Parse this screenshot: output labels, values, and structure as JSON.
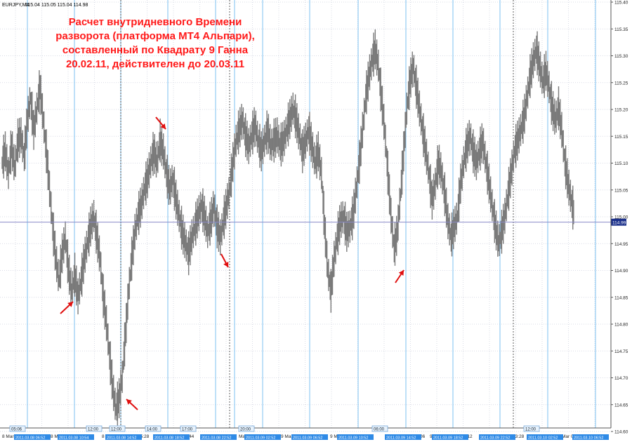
{
  "chart_data": {
    "type": "line",
    "symbol_header": {
      "symbol": "EURJPY,M4",
      "values": [
        "115.04",
        "115.05",
        "115.04",
        "114.98"
      ]
    },
    "annotation": {
      "lines": [
        "Расчет внутридневного Времени",
        "разворота (платформа МТ4 Альпари),",
        "составленный по Квадрату 9 Ганна",
        "20.02.11, действителен до 20.03.11"
      ]
    },
    "y_axis": {
      "labels": [
        "115.40",
        "115.35",
        "115.30",
        "115.25",
        "115.20",
        "115.15",
        "115.10",
        "115.05",
        "115.00",
        "114.95",
        "114.90",
        "114.85",
        "114.80",
        "114.75",
        "114.70",
        "114.65",
        "114.60"
      ],
      "ylim": [
        114.6,
        115.4
      ]
    },
    "current_price": "114.99",
    "price_line_value": 114.99,
    "grid": true,
    "series": [
      {
        "values": [
          115.1,
          115.12,
          115.08,
          115.13,
          115.09,
          115.14,
          115.15,
          115.11,
          115.18,
          115.22,
          115.16,
          115.2,
          115.24,
          115.18,
          115.12,
          115.05,
          114.98,
          114.92,
          114.88,
          114.93,
          114.96,
          114.9,
          114.86,
          114.89,
          114.85,
          114.88,
          114.92,
          114.95,
          114.98,
          115.0,
          114.96,
          114.92,
          114.85,
          114.8,
          114.74,
          114.68,
          114.64,
          114.66,
          114.7,
          114.78,
          114.86,
          114.92,
          114.97,
          115.0,
          115.02,
          115.05,
          115.07,
          115.1,
          115.12,
          115.1,
          115.14,
          115.12,
          115.08,
          115.05,
          115.07,
          115.03,
          115.0,
          114.97,
          114.95,
          114.93,
          114.96,
          114.98,
          115.0,
          115.02,
          115.0,
          114.97,
          114.99,
          115.02,
          114.98,
          114.96,
          114.99,
          115.02,
          115.05,
          115.1,
          115.14,
          115.16,
          115.18,
          115.15,
          115.13,
          115.15,
          115.17,
          115.14,
          115.12,
          115.14,
          115.16,
          115.13,
          115.14,
          115.15,
          115.13,
          115.14,
          115.16,
          115.18,
          115.2,
          115.18,
          115.15,
          115.12,
          115.14,
          115.16,
          115.13,
          115.1,
          115.12,
          115.08,
          114.98,
          114.9,
          114.86,
          114.92,
          114.96,
          114.99,
          115.0,
          114.97,
          114.98,
          115.0,
          115.05,
          115.1,
          115.16,
          115.22,
          115.26,
          115.29,
          115.31,
          115.28,
          115.22,
          115.16,
          115.08,
          115.0,
          114.94,
          114.97,
          115.04,
          115.12,
          115.2,
          115.25,
          115.28,
          115.24,
          115.2,
          115.16,
          115.12,
          115.08,
          115.03,
          115.06,
          115.1,
          115.08,
          115.04,
          114.99,
          114.96,
          114.98,
          115.0,
          115.06,
          115.1,
          115.13,
          115.15,
          115.12,
          115.1,
          115.12,
          115.14,
          115.1,
          115.06,
          115.02,
          114.98,
          114.95,
          114.97,
          115.0,
          115.04,
          115.08,
          115.12,
          115.14,
          115.16,
          115.18,
          115.22,
          115.26,
          115.29,
          115.31,
          115.28,
          115.25,
          115.27,
          115.24,
          115.2,
          115.18,
          115.2,
          115.16,
          115.1,
          115.06,
          115.03,
          115.0
        ]
      }
    ],
    "vertical_markers": {
      "blue_count": 20,
      "dashed_day_separators": 3
    },
    "x_axis": {
      "labels": [
        "8 Mar",
        "8 Mar 11:12",
        "8 Mar",
        "15:28",
        "Mar 19:44",
        "Mar 00:00",
        "9 Mar 04:",
        "9 Mar",
        "20",
        "9 Mar",
        "06",
        "9 Mar",
        "9:12",
        "23:28",
        "Mar 03:44",
        "Mar"
      ],
      "time_tags": [
        "05:06",
        "12:00",
        "12:00",
        "14:00",
        "17:00",
        "20:00",
        "06:00",
        "12:00",
        "06:00"
      ],
      "blue_date_tags": [
        "2011.03.08 06:52",
        "2011.03.08 10:54",
        "2011.03.08 14:52",
        "2011.03.08 18:52",
        "2011.03.08 22:52",
        "2011.03.09 02:52",
        "2011.03.09 06:52",
        "2011.03.09 10:52",
        "2011.03.09 14:52",
        "2011.03.09 18:52",
        "2011.03.09 22:52",
        "2011.03.10 02:52",
        "2011.03.10 06:52"
      ]
    },
    "colors": {
      "series": "#7a7a7a",
      "annotation": "#ff1a1a",
      "marker_line": "#7ec2f2",
      "price_line": "#8a8ac8",
      "current_price_bg": "#1a2f8a",
      "grid": "#d9dce6",
      "arrow": "#e01010"
    }
  }
}
